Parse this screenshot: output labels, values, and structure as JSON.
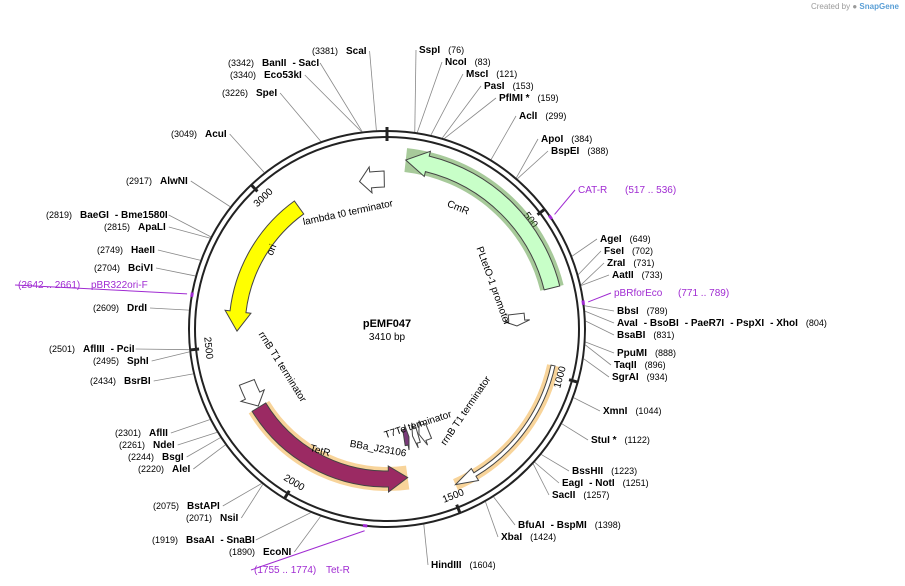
{
  "brand": {
    "prefix": "Created by",
    "name": "SnapGene"
  },
  "plasmid": {
    "name": "pEMF047",
    "length_text": "3410 bp",
    "total_bp": 3410
  },
  "ticks": [
    {
      "bp": 500,
      "label": "500"
    },
    {
      "bp": 1000,
      "label": "1000"
    },
    {
      "bp": 1500,
      "label": "1500"
    },
    {
      "bp": 2000,
      "label": "2000"
    },
    {
      "bp": 2500,
      "label": "2500"
    },
    {
      "bp": 3000,
      "label": "3000"
    }
  ],
  "sites": [
    {
      "id": "scai",
      "parts": [
        "ScaI"
      ],
      "pos": "(3381)",
      "bp": 3381
    },
    {
      "id": "banii",
      "parts": [
        "BanII",
        "- SacI"
      ],
      "pos": "(3342)",
      "bp": 3342
    },
    {
      "id": "eco53ki",
      "parts": [
        "Eco53kI"
      ],
      "pos": "(3340)",
      "bp": 3340
    },
    {
      "id": "spei",
      "parts": [
        "SpeI"
      ],
      "pos": "(3226)",
      "bp": 3226
    },
    {
      "id": "acui",
      "parts": [
        "AcuI"
      ],
      "pos": "(3049)",
      "bp": 3049
    },
    {
      "id": "alwni",
      "parts": [
        "AlwNI"
      ],
      "pos": "(2917)",
      "bp": 2917
    },
    {
      "id": "baegi",
      "parts": [
        "BaeGI",
        "- Bme1580I"
      ],
      "pos": "(2819)",
      "bp": 2819
    },
    {
      "id": "apali",
      "parts": [
        "ApaLI"
      ],
      "pos": "(2815)",
      "bp": 2815
    },
    {
      "id": "haeii",
      "parts": [
        "HaeII"
      ],
      "pos": "(2749)",
      "bp": 2749
    },
    {
      "id": "bcivi",
      "parts": [
        "BciVI"
      ],
      "pos": "(2704)",
      "bp": 2704
    },
    {
      "id": "drdi",
      "parts": [
        "DrdI"
      ],
      "pos": "(2609)",
      "bp": 2609
    },
    {
      "id": "afliii",
      "parts": [
        "AflIII",
        "- PciI"
      ],
      "pos": "(2501)",
      "bp": 2501
    },
    {
      "id": "sphi",
      "parts": [
        "SphI"
      ],
      "pos": "(2495)",
      "bp": 2495
    },
    {
      "id": "bsrbi",
      "parts": [
        "BsrBI"
      ],
      "pos": "(2434)",
      "bp": 2434
    },
    {
      "id": "aflii",
      "parts": [
        "AflII"
      ],
      "pos": "(2301)",
      "bp": 2301
    },
    {
      "id": "ndei",
      "parts": [
        "NdeI"
      ],
      "pos": "(2261)",
      "bp": 2261
    },
    {
      "id": "bsgi",
      "parts": [
        "BsgI"
      ],
      "pos": "(2244)",
      "bp": 2244
    },
    {
      "id": "alei",
      "parts": [
        "AleI"
      ],
      "pos": "(2220)",
      "bp": 2220
    },
    {
      "id": "bstapi",
      "parts": [
        "BstAPI"
      ],
      "pos": "(2075)",
      "bp": 2075
    },
    {
      "id": "nsii",
      "parts": [
        "NsiI"
      ],
      "pos": "(2071)",
      "bp": 2071
    },
    {
      "id": "bsaai",
      "parts": [
        "BsaAI",
        "- SnaBI"
      ],
      "pos": "(1919)",
      "bp": 1919
    },
    {
      "id": "econi",
      "parts": [
        "EcoNI"
      ],
      "pos": "(1890)",
      "bp": 1890
    },
    {
      "id": "hindiii",
      "parts": [
        "HindIII"
      ],
      "pos": "(1604)",
      "bp": 1604
    },
    {
      "id": "bfuai",
      "parts": [
        "BfuAI",
        "- BspMI"
      ],
      "pos": "(1398)",
      "bp": 1398
    },
    {
      "id": "xbai",
      "parts": [
        "XbaI"
      ],
      "pos": "(1424)",
      "bp": 1424
    },
    {
      "id": "eagi",
      "parts": [
        "EagI",
        "- NotI"
      ],
      "pos": "(1251)",
      "bp": 1251
    },
    {
      "id": "bsshii",
      "parts": [
        "BssHII"
      ],
      "pos": "(1223)",
      "bp": 1223
    },
    {
      "id": "sacii",
      "parts": [
        "SacII"
      ],
      "pos": "(1257)",
      "bp": 1257
    },
    {
      "id": "stui",
      "parts": [
        "StuI *"
      ],
      "pos": "(1122)",
      "bp": 1122
    },
    {
      "id": "xmni",
      "parts": [
        "XmnI"
      ],
      "pos": "(1044)",
      "bp": 1044
    },
    {
      "id": "sgrai",
      "parts": [
        "SgrAI"
      ],
      "pos": "(934)",
      "bp": 934
    },
    {
      "id": "taqii",
      "parts": [
        "TaqII"
      ],
      "pos": "(896)",
      "bp": 896
    },
    {
      "id": "ppumi",
      "parts": [
        "PpuMI"
      ],
      "pos": "(888)",
      "bp": 888
    },
    {
      "id": "bsabi",
      "parts": [
        "BsaBI"
      ],
      "pos": "(831)",
      "bp": 831
    },
    {
      "id": "avai",
      "parts": [
        "AvaI",
        "- BsoBI",
        "- PaeR7I",
        "- PspXI",
        "- XhoI"
      ],
      "pos": "(804)",
      "bp": 804
    },
    {
      "id": "bbsi",
      "parts": [
        "BbsI"
      ],
      "pos": "(789)",
      "bp": 789
    },
    {
      "id": "aatii",
      "parts": [
        "AatII"
      ],
      "pos": "(733)",
      "bp": 733
    },
    {
      "id": "zrai",
      "parts": [
        "ZraI"
      ],
      "pos": "(731)",
      "bp": 731
    },
    {
      "id": "fsei",
      "parts": [
        "FseI"
      ],
      "pos": "(702)",
      "bp": 702
    },
    {
      "id": "agei",
      "parts": [
        "AgeI"
      ],
      "pos": "(649)",
      "bp": 649
    },
    {
      "id": "bspei",
      "parts": [
        "BspEI"
      ],
      "pos": "(388)",
      "bp": 388
    },
    {
      "id": "apoi",
      "parts": [
        "ApoI"
      ],
      "pos": "(384)",
      "bp": 384
    },
    {
      "id": "acli",
      "parts": [
        "AclI"
      ],
      "pos": "(299)",
      "bp": 299
    },
    {
      "id": "pflmi",
      "parts": [
        "PflMI *"
      ],
      "pos": "(159)",
      "bp": 159
    },
    {
      "id": "pasi",
      "parts": [
        "PasI"
      ],
      "pos": "(153)",
      "bp": 153
    },
    {
      "id": "msci",
      "parts": [
        "MscI"
      ],
      "pos": "(121)",
      "bp": 121
    },
    {
      "id": "ncoi",
      "parts": [
        "NcoI"
      ],
      "pos": "(83)",
      "bp": 83
    },
    {
      "id": "sspi",
      "parts": [
        "SspI"
      ],
      "pos": "(76)",
      "bp": 76
    }
  ],
  "primers": [
    {
      "id": "cat-r",
      "name": "CAT-R",
      "range": "(517 .. 536)",
      "bp": 527,
      "dir": "rev"
    },
    {
      "id": "pbrforeco",
      "name": "pBRforEco",
      "range": "(771 .. 789)",
      "bp": 780,
      "dir": "fwd"
    },
    {
      "id": "tet-r",
      "name": "Tet-R",
      "range": "(1755 .. 1774)",
      "bp": 1765,
      "dir": "rev"
    },
    {
      "id": "pbr322ori-f",
      "name": "pBR322ori-F",
      "range": "(2642 .. 2661)",
      "bp": 2652,
      "dir": "fwd"
    }
  ],
  "features": [
    {
      "id": "cmr",
      "label": "CmR",
      "start": 60,
      "end": 720,
      "dir": "rev",
      "color": "#c8ffc8",
      "highlight": "#3c8a1e"
    },
    {
      "id": "ori",
      "label": "ori",
      "start": 2550,
      "end": 3070,
      "dir": "rev",
      "color": "#ffff00",
      "highlight": ""
    },
    {
      "id": "tetr",
      "label": "TetR",
      "start": 1630,
      "end": 2260,
      "dir": "rev",
      "color": "#9b2a63",
      "highlight": "#f0a020"
    },
    {
      "id": "cds-1000",
      "label": "",
      "start": 970,
      "end": 1480,
      "dir": "fwd",
      "color": "#ffffff",
      "highlight": "#f0a020"
    },
    {
      "id": "lambda-t0",
      "label": "lambda t0 terminator",
      "start": 3310,
      "end": 3400,
      "dir": "rev",
      "color": "#ffffff",
      "highlight": ""
    },
    {
      "id": "rrnb-t1-left",
      "label": "rrnB T1 terminator",
      "start": 2265,
      "end": 2360,
      "dir": "rev",
      "color": "#ffffff",
      "highlight": ""
    },
    {
      "id": "rrnb-t1-bottom",
      "label": "rrnB T1 terminator",
      "start": 1495,
      "end": 1545,
      "dir": "fwd",
      "color": "#ffffff",
      "highlight": ""
    },
    {
      "id": "t7te",
      "label": "T7Te terminator",
      "start": 1550,
      "end": 1578,
      "dir": "fwd",
      "color": "#ffffff",
      "highlight": ""
    },
    {
      "id": "bba-j23106",
      "label": "BBa_J23106",
      "start": 1596,
      "end": 1621,
      "dir": "rev",
      "color": "#7a3a7a",
      "highlight": ""
    },
    {
      "id": "pltet-o1",
      "label": "PLtetO-1 promoter",
      "start": 790,
      "end": 840,
      "dir": "fwd",
      "color": "#ffffff",
      "highlight": ""
    }
  ]
}
